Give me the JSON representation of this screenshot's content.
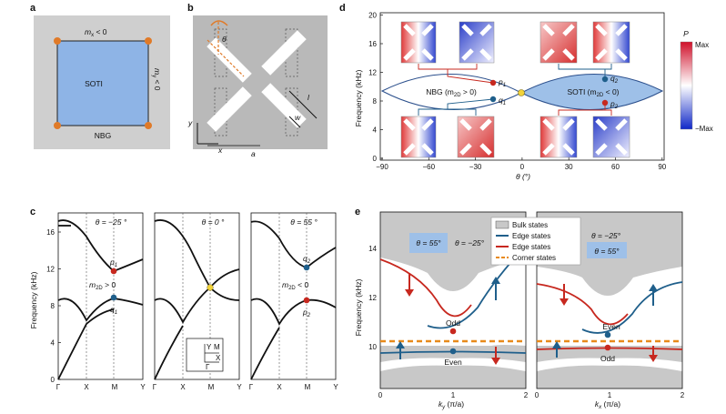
{
  "panels": {
    "a": {
      "label": "a",
      "top_text": "m",
      "top_sub": "x",
      "top_rel": " < 0",
      "right_text": "m",
      "right_sub": "y",
      "right_rel": " < 0",
      "center": "SOTI",
      "bottom": "NBG"
    },
    "b": {
      "label": "b",
      "theta": "θ",
      "x": "x",
      "y": "y",
      "a": "a",
      "l": "l",
      "w": "w"
    },
    "c": {
      "label": "c",
      "ylabel": "Frequency (kHz)",
      "yticks": [
        "0",
        "4",
        "8",
        "12",
        "16"
      ],
      "xticks": [
        "Γ",
        "X",
        "M",
        "Y"
      ],
      "subs": [
        {
          "theta": "θ = −25 °",
          "upper_pt": "p",
          "upper_sub": "1",
          "lower_pt": "q",
          "lower_sub": "1",
          "mass": "m",
          "mass_sub": "2D",
          "mass_rel": " > 0"
        },
        {
          "theta": "θ = 0 °"
        },
        {
          "theta": "θ = 55 °",
          "upper_pt": "q",
          "upper_sub": "2",
          "lower_pt": "p",
          "lower_sub": "2",
          "mass": "m",
          "mass_sub": "2D",
          "mass_rel": " < 0"
        }
      ],
      "bz": {
        "Y": "Y",
        "M": "M",
        "G": "Γ",
        "X": "X"
      }
    },
    "d": {
      "label": "d",
      "ylabel": "Frequency (kHz)",
      "xlabel": "θ (°)",
      "yticks": [
        "0",
        "4",
        "8",
        "12",
        "16",
        "20"
      ],
      "xticks": [
        "−90",
        "−60",
        "−30",
        "0",
        "30",
        "60",
        "90"
      ],
      "left_region": "NBG (m",
      "left_sub": "2D",
      "left_rel": " > 0)",
      "right_region": "SOTI (m",
      "right_sub": "2D",
      "right_rel": " < 0)",
      "points": [
        {
          "name": "p",
          "sub": "1"
        },
        {
          "name": "q",
          "sub": "1"
        },
        {
          "name": "q",
          "sub": "2"
        },
        {
          "name": "p",
          "sub": "2"
        }
      ],
      "colorbar": {
        "title": "P",
        "max": "Max",
        "min": "−Max"
      }
    },
    "e": {
      "label": "e",
      "ylabel": "Frequency (kHz)",
      "yticks": [
        "10",
        "12",
        "14"
      ],
      "xticks": [
        "0",
        "1",
        "2"
      ],
      "left_xlabel": "k",
      "left_xsub": "y",
      "right_xlabel": "k",
      "right_xsub": "x",
      "xunit": " (π/a)",
      "left_boxes": [
        "θ = 55°",
        "θ = −25°"
      ],
      "right_boxes": [
        "θ = −25°",
        "θ = 55°"
      ],
      "legend": [
        "Bulk states",
        "Edge states",
        "Edge states",
        "Corner states"
      ],
      "left_upper": "Odd",
      "left_lower": "Even",
      "right_upper": "Even",
      "right_lower": "Odd"
    }
  },
  "colors": {
    "blue": "#1f5f8b",
    "red": "#c7281f",
    "orange": "#e88a1a",
    "soti": "#9ec0e8",
    "gray": "#c8c8c8",
    "yellow": "#f2d33a"
  }
}
